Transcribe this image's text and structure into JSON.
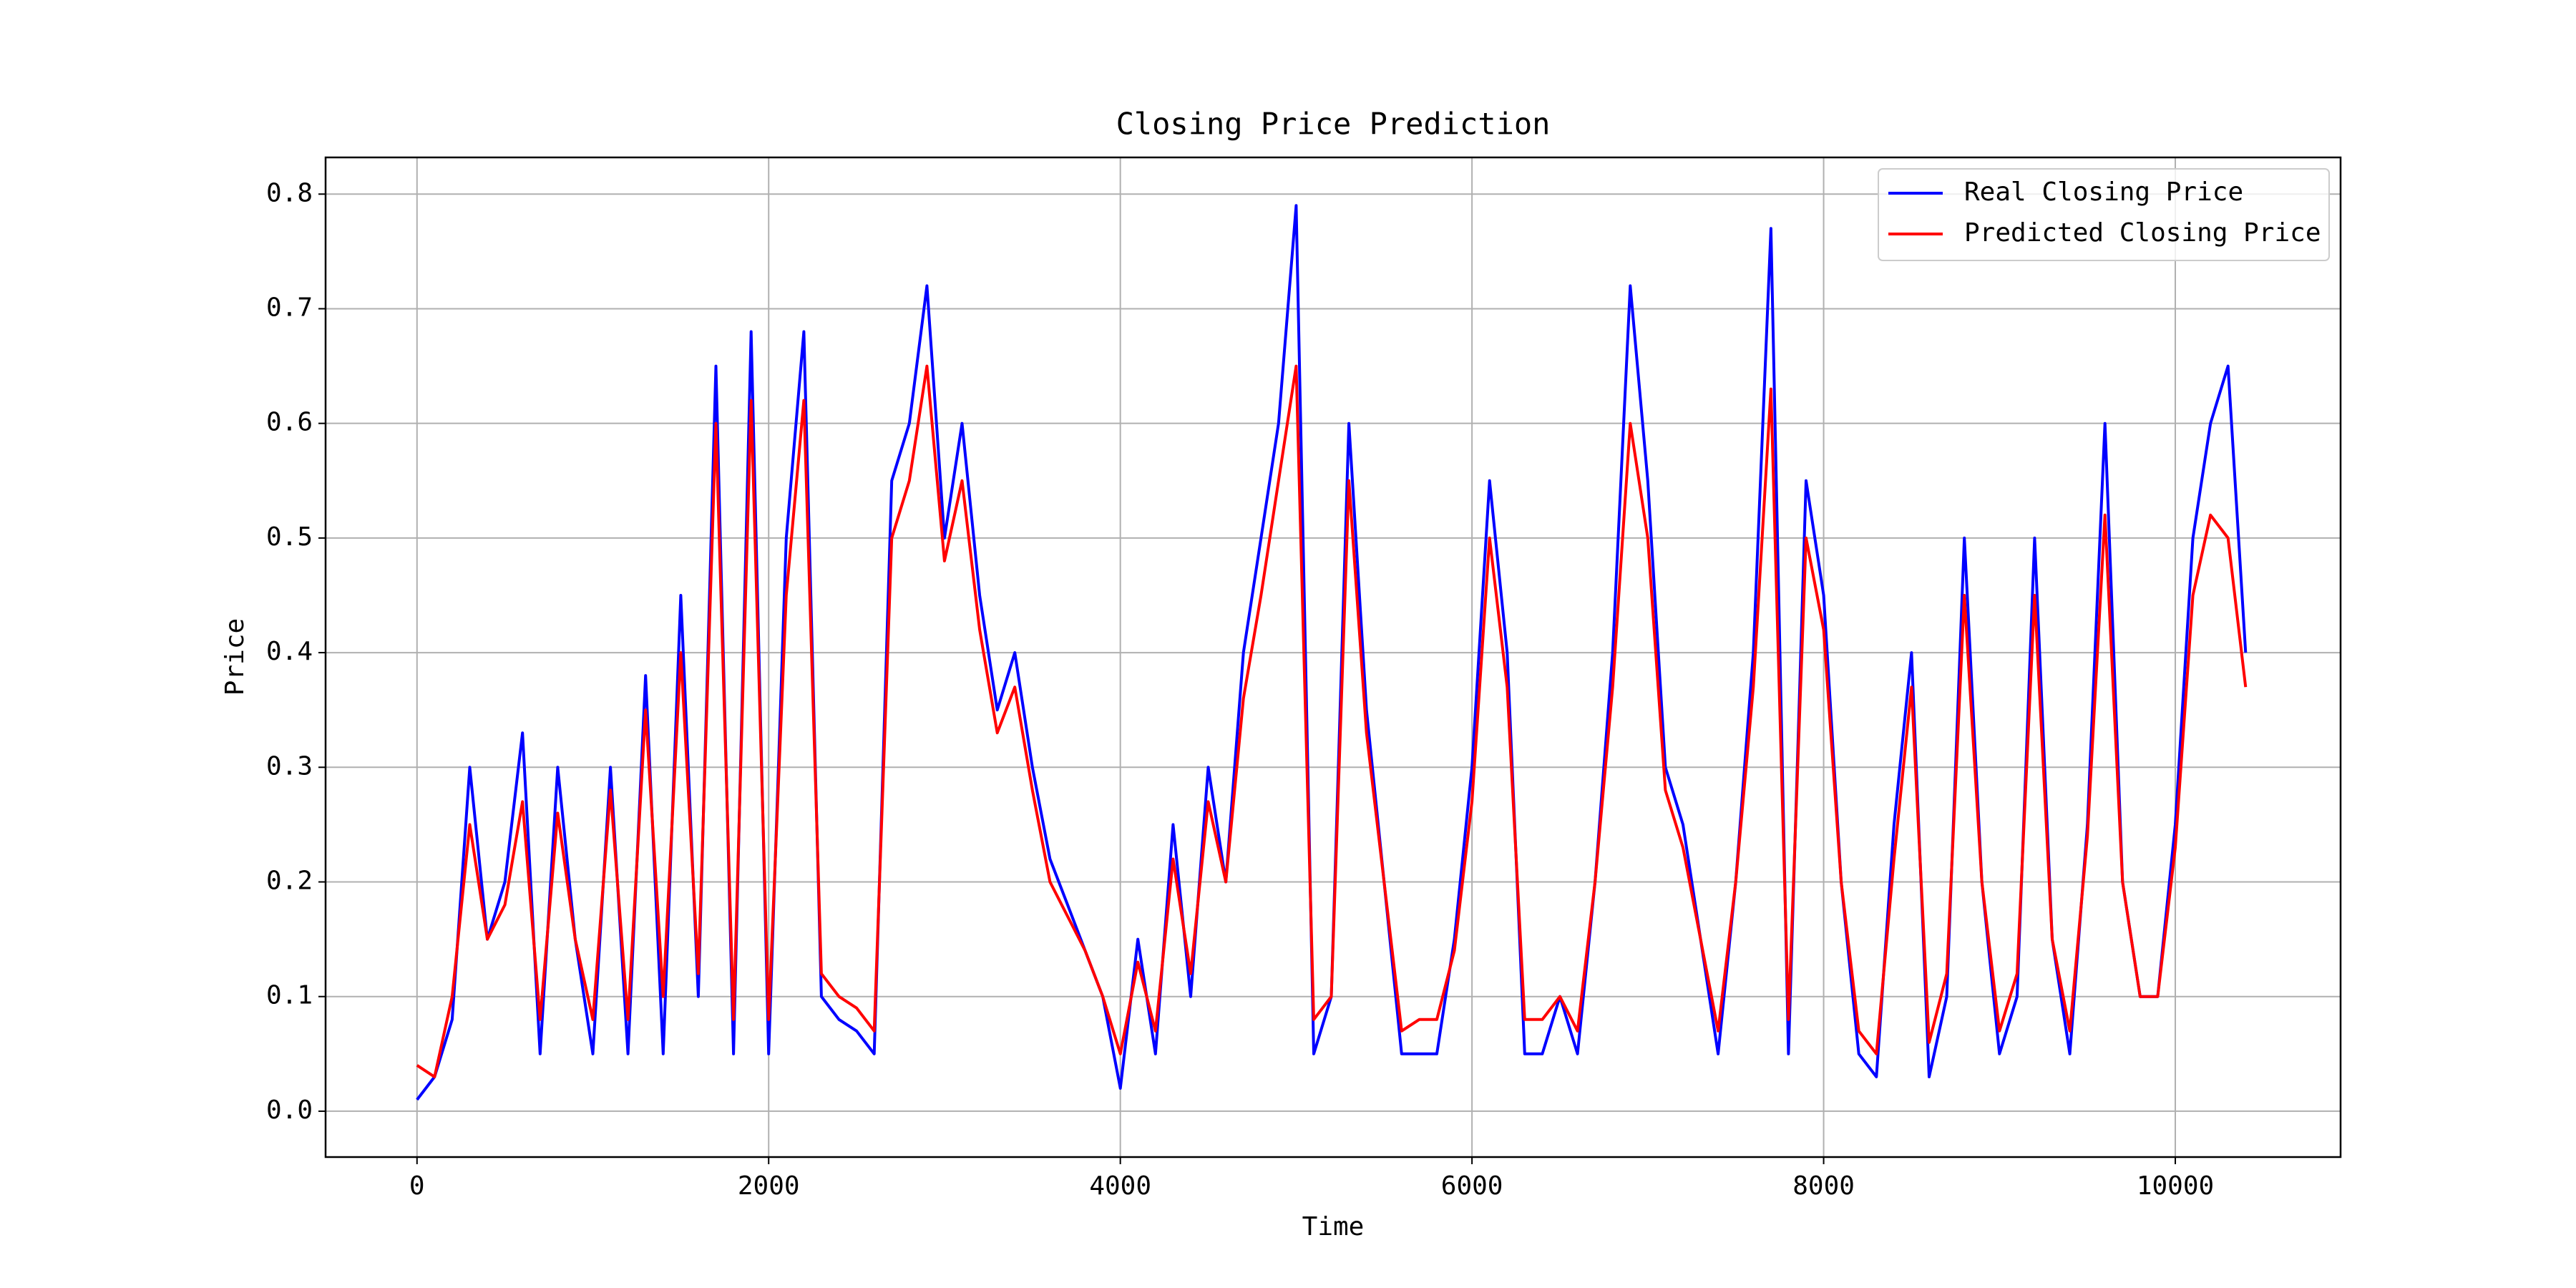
{
  "chart_data": {
    "type": "line",
    "title": "Closing Price Prediction",
    "x_label": "Time",
    "y_label": "Price",
    "x": [
      0,
      100,
      200,
      300,
      400,
      500,
      600,
      700,
      800,
      900,
      1000,
      1100,
      1200,
      1300,
      1400,
      1500,
      1600,
      1700,
      1800,
      1900,
      2000,
      2100,
      2200,
      2300,
      2400,
      2500,
      2600,
      2700,
      2800,
      2900,
      3000,
      3100,
      3200,
      3300,
      3400,
      3500,
      3600,
      3700,
      3800,
      3900,
      4000,
      4100,
      4200,
      4300,
      4400,
      4500,
      4600,
      4700,
      4800,
      4900,
      5000,
      5100,
      5200,
      5300,
      5400,
      5500,
      5600,
      5700,
      5800,
      5900,
      6000,
      6100,
      6200,
      6300,
      6400,
      6500,
      6600,
      6700,
      6800,
      6900,
      7000,
      7100,
      7200,
      7300,
      7400,
      7500,
      7600,
      7700,
      7800,
      7900,
      8000,
      8100,
      8200,
      8300,
      8400,
      8500,
      8600,
      8700,
      8800,
      8900,
      9000,
      9100,
      9200,
      9300,
      9400,
      9500,
      9600,
      9700,
      9800,
      9900,
      10000,
      10100,
      10200,
      10300,
      10400
    ],
    "series": [
      {
        "name": "Real Closing Price",
        "color": "#0000ff",
        "values": [
          0.01,
          0.03,
          0.08,
          0.3,
          0.15,
          0.2,
          0.33,
          0.05,
          0.3,
          0.15,
          0.05,
          0.3,
          0.05,
          0.38,
          0.05,
          0.45,
          0.1,
          0.65,
          0.05,
          0.68,
          0.05,
          0.5,
          0.68,
          0.1,
          0.08,
          0.07,
          0.05,
          0.55,
          0.6,
          0.72,
          0.5,
          0.6,
          0.45,
          0.35,
          0.4,
          0.3,
          0.22,
          0.18,
          0.14,
          0.1,
          0.02,
          0.15,
          0.05,
          0.25,
          0.1,
          0.3,
          0.2,
          0.4,
          0.5,
          0.6,
          0.79,
          0.05,
          0.1,
          0.6,
          0.35,
          0.2,
          0.05,
          0.05,
          0.05,
          0.15,
          0.3,
          0.55,
          0.4,
          0.05,
          0.05,
          0.1,
          0.05,
          0.2,
          0.4,
          0.72,
          0.55,
          0.3,
          0.25,
          0.15,
          0.05,
          0.2,
          0.4,
          0.77,
          0.05,
          0.55,
          0.45,
          0.2,
          0.05,
          0.03,
          0.25,
          0.4,
          0.03,
          0.1,
          0.5,
          0.2,
          0.05,
          0.1,
          0.5,
          0.15,
          0.05,
          0.25,
          0.6,
          0.2,
          0.1,
          0.1,
          0.25,
          0.5,
          0.6,
          0.65,
          0.4
        ]
      },
      {
        "name": "Predicted Closing Price",
        "color": "#ff0000",
        "values": [
          0.04,
          0.03,
          0.1,
          0.25,
          0.15,
          0.18,
          0.27,
          0.08,
          0.26,
          0.15,
          0.08,
          0.28,
          0.08,
          0.35,
          0.1,
          0.4,
          0.12,
          0.6,
          0.08,
          0.62,
          0.08,
          0.45,
          0.62,
          0.12,
          0.1,
          0.09,
          0.07,
          0.5,
          0.55,
          0.65,
          0.48,
          0.55,
          0.42,
          0.33,
          0.37,
          0.28,
          0.2,
          0.17,
          0.14,
          0.1,
          0.05,
          0.13,
          0.07,
          0.22,
          0.12,
          0.27,
          0.2,
          0.36,
          0.45,
          0.55,
          0.65,
          0.08,
          0.1,
          0.55,
          0.33,
          0.2,
          0.07,
          0.08,
          0.08,
          0.14,
          0.27,
          0.5,
          0.37,
          0.08,
          0.08,
          0.1,
          0.07,
          0.2,
          0.37,
          0.6,
          0.5,
          0.28,
          0.23,
          0.15,
          0.07,
          0.2,
          0.37,
          0.63,
          0.08,
          0.5,
          0.42,
          0.2,
          0.07,
          0.05,
          0.22,
          0.37,
          0.06,
          0.12,
          0.45,
          0.2,
          0.07,
          0.12,
          0.45,
          0.15,
          0.07,
          0.24,
          0.52,
          0.2,
          0.1,
          0.1,
          0.23,
          0.45,
          0.52,
          0.5,
          0.37
        ]
      }
    ],
    "xlim": [
      -520,
      10940
    ],
    "ylim": [
      -0.04,
      0.832
    ],
    "xticks": [
      0,
      2000,
      4000,
      6000,
      8000,
      10000
    ],
    "yticks": [
      {
        "value": 0,
        "label": "0.0"
      },
      0.1,
      0.2,
      0.3,
      0.4,
      0.5,
      0.6,
      0.7,
      0.8
    ],
    "grid": true,
    "legend": "upper right"
  }
}
